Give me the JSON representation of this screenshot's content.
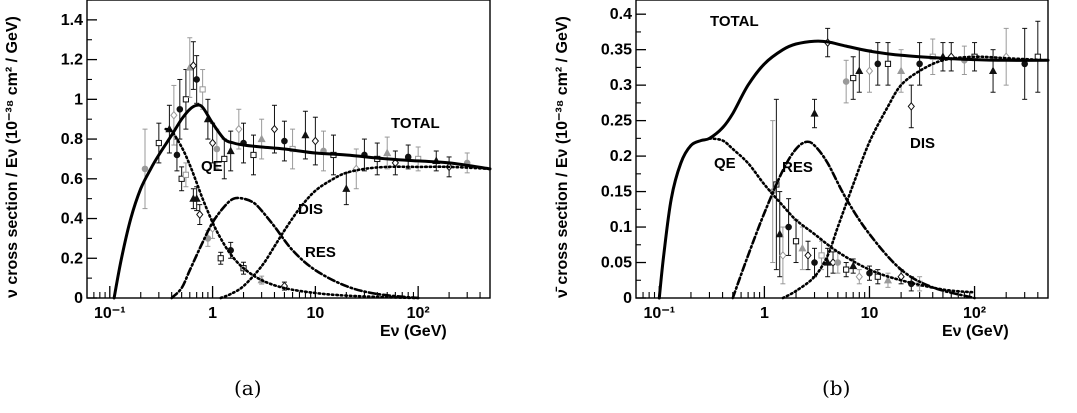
{
  "chart_data": [
    {
      "type": "line",
      "panel_label": "(a)",
      "xlabel": "Eν (GeV)",
      "ylabel": "ν cross section / Eν (10⁻³⁸ cm² / GeV)",
      "xscale": "log",
      "xlim": [
        0.06,
        500
      ],
      "ylim": [
        0,
        1.5
      ],
      "xticks": [
        "10⁻¹",
        "1",
        "10",
        "10²"
      ],
      "yticks": [
        "0",
        "0.2",
        "0.4",
        "0.6",
        "0.8",
        "1",
        "1.2",
        "1.4"
      ],
      "series": [
        {
          "name": "TOTAL",
          "style": "solid",
          "x": [
            0.11,
            0.13,
            0.16,
            0.2,
            0.25,
            0.3,
            0.4,
            0.5,
            0.6,
            0.7,
            0.8,
            1.0,
            1.3,
            1.6,
            2,
            3,
            5,
            10,
            20,
            50,
            100,
            200,
            500
          ],
          "y": [
            0,
            0.2,
            0.4,
            0.55,
            0.65,
            0.72,
            0.82,
            0.9,
            0.95,
            0.97,
            0.96,
            0.88,
            0.8,
            0.78,
            0.77,
            0.76,
            0.75,
            0.73,
            0.72,
            0.7,
            0.69,
            0.68,
            0.65
          ]
        },
        {
          "name": "QE",
          "style": "dotted",
          "x": [
            0.35,
            0.4,
            0.5,
            0.6,
            0.7,
            0.8,
            1.0,
            1.2,
            1.5,
            2,
            3,
            5,
            10,
            20,
            50,
            100
          ],
          "y": [
            0.85,
            0.84,
            0.76,
            0.67,
            0.58,
            0.5,
            0.38,
            0.3,
            0.22,
            0.15,
            0.09,
            0.05,
            0.025,
            0.012,
            0.004,
            0.0
          ]
        },
        {
          "name": "RES",
          "style": "dashdot",
          "x": [
            0.4,
            0.5,
            0.6,
            0.8,
            1.0,
            1.3,
            1.6,
            2,
            2.5,
            3,
            4,
            6,
            10,
            20,
            40,
            100
          ],
          "y": [
            0.0,
            0.05,
            0.14,
            0.28,
            0.38,
            0.46,
            0.5,
            0.5,
            0.48,
            0.44,
            0.36,
            0.24,
            0.14,
            0.06,
            0.02,
            0.0
          ]
        },
        {
          "name": "DIS",
          "style": "dotted",
          "x": [
            1.2,
            1.5,
            2,
            3,
            4,
            5,
            7,
            10,
            15,
            20,
            30,
            50,
            100,
            200,
            500
          ],
          "y": [
            0.0,
            0.02,
            0.06,
            0.16,
            0.26,
            0.34,
            0.45,
            0.54,
            0.6,
            0.63,
            0.65,
            0.66,
            0.66,
            0.66,
            0.65
          ]
        }
      ],
      "labels": [
        "TOTAL",
        "QE",
        "DIS",
        "RES"
      ],
      "measurements": {
        "x": [
          0.22,
          0.3,
          0.38,
          0.42,
          0.48,
          0.55,
          0.6,
          0.65,
          0.7,
          0.8,
          0.9,
          1.0,
          1.1,
          1.3,
          1.5,
          1.8,
          2.0,
          2.5,
          3.0,
          4.0,
          5.0,
          6.0,
          8.0,
          10.0,
          12.0,
          15.0,
          20.0,
          25.0,
          30.0,
          40.0,
          50.0,
          60.0,
          80.0,
          100.0,
          150.0,
          200.0,
          300.0,
          0.5,
          0.7,
          1.0,
          1.5,
          2.0,
          3.0,
          5.0,
          0.45,
          0.55,
          0.65,
          0.75,
          0.9,
          1.2
        ],
        "y": [
          0.65,
          0.78,
          0.85,
          0.92,
          0.95,
          1.0,
          1.16,
          1.17,
          1.1,
          1.05,
          0.9,
          0.78,
          0.75,
          0.7,
          0.74,
          0.85,
          0.78,
          0.72,
          0.8,
          0.85,
          0.79,
          0.75,
          0.82,
          0.79,
          0.74,
          0.72,
          0.55,
          0.65,
          0.72,
          0.7,
          0.73,
          0.68,
          0.71,
          0.7,
          0.69,
          0.66,
          0.68,
          0.6,
          0.5,
          0.35,
          0.24,
          0.15,
          0.09,
          0.06,
          0.72,
          0.62,
          0.5,
          0.42,
          0.3,
          0.2
        ],
        "err": [
          0.2,
          0.1,
          0.12,
          0.15,
          0.15,
          0.15,
          0.15,
          0.12,
          0.12,
          0.1,
          0.1,
          0.1,
          0.1,
          0.1,
          0.1,
          0.1,
          0.1,
          0.1,
          0.1,
          0.12,
          0.1,
          0.1,
          0.12,
          0.12,
          0.1,
          0.1,
          0.08,
          0.1,
          0.08,
          0.08,
          0.08,
          0.06,
          0.06,
          0.06,
          0.05,
          0.05,
          0.05,
          0.06,
          0.06,
          0.05,
          0.04,
          0.03,
          0.02,
          0.02,
          0.08,
          0.06,
          0.05,
          0.05,
          0.04,
          0.03
        ]
      }
    },
    {
      "type": "line",
      "panel_label": "(b)",
      "xlabel": "Eν (GeV)",
      "ylabel": "ν̄ cross section / Eν (10⁻³⁸ cm² / GeV)",
      "xscale": "log",
      "xlim": [
        0.06,
        500
      ],
      "ylim": [
        0,
        0.42
      ],
      "xticks": [
        "10⁻¹",
        "1",
        "10",
        "10²"
      ],
      "yticks": [
        "0",
        "0.05",
        "0.1",
        "0.15",
        "0.2",
        "0.25",
        "0.3",
        "0.35",
        "0.4"
      ],
      "series": [
        {
          "name": "TOTAL",
          "style": "solid",
          "x": [
            0.1,
            0.11,
            0.13,
            0.16,
            0.2,
            0.25,
            0.3,
            0.4,
            0.5,
            0.7,
            1.0,
            1.5,
            2,
            3,
            4,
            6,
            10,
            20,
            50,
            100,
            200,
            500
          ],
          "y": [
            0,
            0.06,
            0.14,
            0.19,
            0.215,
            0.222,
            0.225,
            0.24,
            0.26,
            0.3,
            0.33,
            0.35,
            0.358,
            0.362,
            0.361,
            0.355,
            0.348,
            0.342,
            0.338,
            0.336,
            0.335,
            0.335
          ]
        },
        {
          "name": "QE",
          "style": "dotted",
          "x": [
            0.3,
            0.4,
            0.5,
            0.7,
            1.0,
            1.5,
            2,
            3,
            5,
            10,
            20,
            50,
            100
          ],
          "y": [
            0.225,
            0.222,
            0.21,
            0.19,
            0.16,
            0.13,
            0.11,
            0.09,
            0.065,
            0.04,
            0.025,
            0.012,
            0.008
          ]
        },
        {
          "name": "RES",
          "style": "dashdot",
          "x": [
            0.5,
            0.7,
            1.0,
            1.5,
            2,
            2.5,
            3,
            4,
            6,
            10,
            20,
            40,
            100
          ],
          "y": [
            0.0,
            0.06,
            0.12,
            0.18,
            0.21,
            0.22,
            0.215,
            0.19,
            0.14,
            0.09,
            0.04,
            0.015,
            0.0
          ]
        },
        {
          "name": "DIS",
          "style": "dotted",
          "x": [
            1.5,
            2,
            3,
            4,
            5,
            7,
            10,
            15,
            20,
            30,
            50,
            100,
            200,
            500
          ],
          "y": [
            0.0,
            0.01,
            0.03,
            0.06,
            0.1,
            0.16,
            0.22,
            0.27,
            0.3,
            0.32,
            0.335,
            0.34,
            0.338,
            0.335
          ]
        }
      ],
      "labels": [
        "TOTAL",
        "QE",
        "RES",
        "DIS"
      ],
      "measurements": {
        "x": [
          1.2,
          1.3,
          1.4,
          1.5,
          1.7,
          2.0,
          2.3,
          2.6,
          3.0,
          3.5,
          4.0,
          4.5,
          5.0,
          6.0,
          7.0,
          8.0,
          10.0,
          12.0,
          15.0,
          20.0,
          25.0,
          30.0,
          3.0,
          4.0,
          6.0,
          7.0,
          8.0,
          10.0,
          12.0,
          15.0,
          20.0,
          25.0,
          30.0,
          40.0,
          50.0,
          60.0,
          80.0,
          100.0,
          150.0,
          200.0,
          300.0,
          400.0
        ],
        "y": [
          0.15,
          0.16,
          0.09,
          0.06,
          0.1,
          0.08,
          0.07,
          0.06,
          0.05,
          0.06,
          0.05,
          0.05,
          0.05,
          0.04,
          0.045,
          0.03,
          0.035,
          0.03,
          0.025,
          0.03,
          0.02,
          0.02,
          0.26,
          0.36,
          0.305,
          0.31,
          0.32,
          0.32,
          0.33,
          0.33,
          0.32,
          0.27,
          0.33,
          0.34,
          0.34,
          0.34,
          0.335,
          0.34,
          0.32,
          0.34,
          0.33,
          0.34
        ],
        "err": [
          0.1,
          0.12,
          0.06,
          0.04,
          0.04,
          0.03,
          0.03,
          0.02,
          0.02,
          0.02,
          0.02,
          0.015,
          0.015,
          0.01,
          0.01,
          0.01,
          0.01,
          0.01,
          0.01,
          0.01,
          0.01,
          0.01,
          0.02,
          0.02,
          0.03,
          0.03,
          0.03,
          0.03,
          0.03,
          0.03,
          0.03,
          0.03,
          0.03,
          0.025,
          0.02,
          0.02,
          0.02,
          0.02,
          0.03,
          0.04,
          0.05,
          0.05
        ]
      }
    }
  ]
}
